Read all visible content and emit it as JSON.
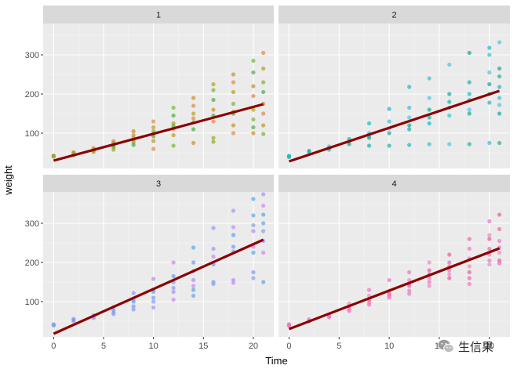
{
  "chart_data": {
    "type": "scatter",
    "xlabel": "Time",
    "ylabel": "weight",
    "xlim": [
      -1.05,
      22.05
    ],
    "ylim": [
      10,
      380
    ],
    "x_ticks": [
      0,
      5,
      10,
      15,
      20
    ],
    "y_ticks": [
      100,
      200,
      300
    ],
    "grid": true,
    "legend": "none",
    "facets": [
      {
        "label": "1",
        "colors": [
          "#C6912B",
          "#E08A4A",
          "#B8A020",
          "#7FB33A",
          "#4CB04A"
        ],
        "fit_line": {
          "x": [
            0,
            21
          ],
          "y": [
            30,
            174
          ],
          "color": "#8B0000"
        },
        "points": [
          {
            "x": 0,
            "y": 42
          },
          {
            "x": 0,
            "y": 40
          },
          {
            "x": 0,
            "y": 43
          },
          {
            "x": 0,
            "y": 41
          },
          {
            "x": 2,
            "y": 50
          },
          {
            "x": 2,
            "y": 48
          },
          {
            "x": 2,
            "y": 46
          },
          {
            "x": 2,
            "y": 51
          },
          {
            "x": 2,
            "y": 44
          },
          {
            "x": 4,
            "y": 59
          },
          {
            "x": 4,
            "y": 56
          },
          {
            "x": 4,
            "y": 62
          },
          {
            "x": 4,
            "y": 52
          },
          {
            "x": 4,
            "y": 55
          },
          {
            "x": 6,
            "y": 76
          },
          {
            "x": 6,
            "y": 70
          },
          {
            "x": 6,
            "y": 80
          },
          {
            "x": 6,
            "y": 64
          },
          {
            "x": 6,
            "y": 58
          },
          {
            "x": 6,
            "y": 68
          },
          {
            "x": 8,
            "y": 105
          },
          {
            "x": 8,
            "y": 95
          },
          {
            "x": 8,
            "y": 88
          },
          {
            "x": 8,
            "y": 76
          },
          {
            "x": 8,
            "y": 70
          },
          {
            "x": 8,
            "y": 82
          },
          {
            "x": 10,
            "y": 130
          },
          {
            "x": 10,
            "y": 115
          },
          {
            "x": 10,
            "y": 105
          },
          {
            "x": 10,
            "y": 92
          },
          {
            "x": 10,
            "y": 80
          },
          {
            "x": 10,
            "y": 60
          },
          {
            "x": 10,
            "y": 98
          },
          {
            "x": 12,
            "y": 165
          },
          {
            "x": 12,
            "y": 145
          },
          {
            "x": 12,
            "y": 125
          },
          {
            "x": 12,
            "y": 110
          },
          {
            "x": 12,
            "y": 95
          },
          {
            "x": 12,
            "y": 68
          },
          {
            "x": 12,
            "y": 118
          },
          {
            "x": 14,
            "y": 190
          },
          {
            "x": 14,
            "y": 170
          },
          {
            "x": 14,
            "y": 150
          },
          {
            "x": 14,
            "y": 128
          },
          {
            "x": 14,
            "y": 110
          },
          {
            "x": 14,
            "y": 75
          },
          {
            "x": 14,
            "y": 138
          },
          {
            "x": 16,
            "y": 225
          },
          {
            "x": 16,
            "y": 210
          },
          {
            "x": 16,
            "y": 185
          },
          {
            "x": 16,
            "y": 160
          },
          {
            "x": 16,
            "y": 130
          },
          {
            "x": 16,
            "y": 88
          },
          {
            "x": 16,
            "y": 78
          },
          {
            "x": 16,
            "y": 145
          },
          {
            "x": 18,
            "y": 250
          },
          {
            "x": 18,
            "y": 230
          },
          {
            "x": 18,
            "y": 205
          },
          {
            "x": 18,
            "y": 175
          },
          {
            "x": 18,
            "y": 150
          },
          {
            "x": 18,
            "y": 120
          },
          {
            "x": 18,
            "y": 100
          },
          {
            "x": 18,
            "y": 155
          },
          {
            "x": 20,
            "y": 285
          },
          {
            "x": 20,
            "y": 255
          },
          {
            "x": 20,
            "y": 220
          },
          {
            "x": 20,
            "y": 195
          },
          {
            "x": 20,
            "y": 160
          },
          {
            "x": 20,
            "y": 135
          },
          {
            "x": 20,
            "y": 115
          },
          {
            "x": 20,
            "y": 100
          },
          {
            "x": 21,
            "y": 305
          },
          {
            "x": 21,
            "y": 265
          },
          {
            "x": 21,
            "y": 230
          },
          {
            "x": 21,
            "y": 205
          },
          {
            "x": 21,
            "y": 175
          },
          {
            "x": 21,
            "y": 150
          },
          {
            "x": 21,
            "y": 120
          },
          {
            "x": 21,
            "y": 98
          }
        ]
      },
      {
        "label": "2",
        "colors": [
          "#1FA79A",
          "#21B3A5",
          "#22B8C4",
          "#3AC0D8",
          "#52C5E3"
        ],
        "fit_line": {
          "x": [
            0,
            21
          ],
          "y": [
            28,
            208
          ],
          "color": "#8B0000"
        },
        "points": [
          {
            "x": 0,
            "y": 42
          },
          {
            "x": 0,
            "y": 39
          },
          {
            "x": 0,
            "y": 41
          },
          {
            "x": 2,
            "y": 52
          },
          {
            "x": 2,
            "y": 49
          },
          {
            "x": 2,
            "y": 55
          },
          {
            "x": 4,
            "y": 62
          },
          {
            "x": 4,
            "y": 58
          },
          {
            "x": 4,
            "y": 66
          },
          {
            "x": 6,
            "y": 78
          },
          {
            "x": 6,
            "y": 72
          },
          {
            "x": 6,
            "y": 85
          },
          {
            "x": 8,
            "y": 125
          },
          {
            "x": 8,
            "y": 100
          },
          {
            "x": 8,
            "y": 92
          },
          {
            "x": 8,
            "y": 88
          },
          {
            "x": 8,
            "y": 68
          },
          {
            "x": 10,
            "y": 162
          },
          {
            "x": 10,
            "y": 130
          },
          {
            "x": 10,
            "y": 112
          },
          {
            "x": 10,
            "y": 100
          },
          {
            "x": 10,
            "y": 68
          },
          {
            "x": 12,
            "y": 218
          },
          {
            "x": 12,
            "y": 165
          },
          {
            "x": 12,
            "y": 140
          },
          {
            "x": 12,
            "y": 120
          },
          {
            "x": 12,
            "y": 110
          },
          {
            "x": 12,
            "y": 70
          },
          {
            "x": 14,
            "y": 240
          },
          {
            "x": 14,
            "y": 190
          },
          {
            "x": 14,
            "y": 160
          },
          {
            "x": 14,
            "y": 140
          },
          {
            "x": 14,
            "y": 125
          },
          {
            "x": 14,
            "y": 72
          },
          {
            "x": 16,
            "y": 275
          },
          {
            "x": 16,
            "y": 200
          },
          {
            "x": 16,
            "y": 180
          },
          {
            "x": 16,
            "y": 165
          },
          {
            "x": 16,
            "y": 145
          },
          {
            "x": 16,
            "y": 72
          },
          {
            "x": 18,
            "y": 305
          },
          {
            "x": 18,
            "y": 230
          },
          {
            "x": 18,
            "y": 200
          },
          {
            "x": 18,
            "y": 185
          },
          {
            "x": 18,
            "y": 160
          },
          {
            "x": 18,
            "y": 150
          },
          {
            "x": 18,
            "y": 72
          },
          {
            "x": 20,
            "y": 318
          },
          {
            "x": 20,
            "y": 300
          },
          {
            "x": 20,
            "y": 255
          },
          {
            "x": 20,
            "y": 225
          },
          {
            "x": 20,
            "y": 200
          },
          {
            "x": 20,
            "y": 178
          },
          {
            "x": 20,
            "y": 75
          },
          {
            "x": 21,
            "y": 332
          },
          {
            "x": 21,
            "y": 265
          },
          {
            "x": 21,
            "y": 245
          },
          {
            "x": 21,
            "y": 218
          },
          {
            "x": 21,
            "y": 190
          },
          {
            "x": 21,
            "y": 172
          },
          {
            "x": 21,
            "y": 150
          },
          {
            "x": 21,
            "y": 75
          }
        ]
      },
      {
        "label": "3",
        "colors": [
          "#5AA7E6",
          "#6FA0F0",
          "#8E9CF2",
          "#B08EF5",
          "#C78AF2"
        ],
        "fit_line": {
          "x": [
            0,
            21
          ],
          "y": [
            18,
            258
          ],
          "color": "#8B0000"
        },
        "points": [
          {
            "x": 0,
            "y": 42
          },
          {
            "x": 0,
            "y": 39
          },
          {
            "x": 0,
            "y": 41
          },
          {
            "x": 2,
            "y": 56
          },
          {
            "x": 2,
            "y": 50
          },
          {
            "x": 2,
            "y": 53
          },
          {
            "x": 4,
            "y": 65
          },
          {
            "x": 4,
            "y": 58
          },
          {
            "x": 4,
            "y": 62
          },
          {
            "x": 6,
            "y": 86
          },
          {
            "x": 6,
            "y": 78
          },
          {
            "x": 6,
            "y": 72
          },
          {
            "x": 6,
            "y": 68
          },
          {
            "x": 8,
            "y": 122
          },
          {
            "x": 8,
            "y": 105
          },
          {
            "x": 8,
            "y": 100
          },
          {
            "x": 8,
            "y": 88
          },
          {
            "x": 8,
            "y": 80
          },
          {
            "x": 10,
            "y": 158
          },
          {
            "x": 10,
            "y": 130
          },
          {
            "x": 10,
            "y": 125
          },
          {
            "x": 10,
            "y": 110
          },
          {
            "x": 10,
            "y": 100
          },
          {
            "x": 10,
            "y": 85
          },
          {
            "x": 12,
            "y": 200
          },
          {
            "x": 12,
            "y": 165
          },
          {
            "x": 12,
            "y": 150
          },
          {
            "x": 12,
            "y": 135
          },
          {
            "x": 12,
            "y": 125
          },
          {
            "x": 12,
            "y": 105
          },
          {
            "x": 14,
            "y": 238
          },
          {
            "x": 14,
            "y": 200
          },
          {
            "x": 14,
            "y": 178
          },
          {
            "x": 14,
            "y": 155
          },
          {
            "x": 14,
            "y": 140
          },
          {
            "x": 14,
            "y": 130
          },
          {
            "x": 14,
            "y": 115
          },
          {
            "x": 16,
            "y": 288
          },
          {
            "x": 16,
            "y": 235
          },
          {
            "x": 16,
            "y": 215
          },
          {
            "x": 16,
            "y": 195
          },
          {
            "x": 16,
            "y": 150
          },
          {
            "x": 16,
            "y": 145
          },
          {
            "x": 18,
            "y": 332
          },
          {
            "x": 18,
            "y": 290
          },
          {
            "x": 18,
            "y": 270
          },
          {
            "x": 18,
            "y": 240
          },
          {
            "x": 18,
            "y": 228
          },
          {
            "x": 18,
            "y": 155
          },
          {
            "x": 18,
            "y": 148
          },
          {
            "x": 20,
            "y": 362
          },
          {
            "x": 20,
            "y": 320
          },
          {
            "x": 20,
            "y": 295
          },
          {
            "x": 20,
            "y": 280
          },
          {
            "x": 20,
            "y": 240
          },
          {
            "x": 20,
            "y": 225
          },
          {
            "x": 20,
            "y": 175
          },
          {
            "x": 20,
            "y": 160
          },
          {
            "x": 21,
            "y": 374
          },
          {
            "x": 21,
            "y": 345
          },
          {
            "x": 21,
            "y": 322
          },
          {
            "x": 21,
            "y": 300
          },
          {
            "x": 21,
            "y": 280
          },
          {
            "x": 21,
            "y": 255
          },
          {
            "x": 21,
            "y": 225
          },
          {
            "x": 21,
            "y": 150
          }
        ]
      },
      {
        "label": "4",
        "colors": [
          "#E85FA0",
          "#EE6BB3",
          "#F278C0",
          "#E879C9",
          "#F08BBE"
        ],
        "fit_line": {
          "x": [
            0,
            21
          ],
          "y": [
            30,
            236
          ],
          "color": "#8B0000"
        },
        "points": [
          {
            "x": 0,
            "y": 42
          },
          {
            "x": 0,
            "y": 38
          },
          {
            "x": 0,
            "y": 40
          },
          {
            "x": 2,
            "y": 52
          },
          {
            "x": 2,
            "y": 55
          },
          {
            "x": 2,
            "y": 50
          },
          {
            "x": 4,
            "y": 68
          },
          {
            "x": 4,
            "y": 62
          },
          {
            "x": 4,
            "y": 60
          },
          {
            "x": 6,
            "y": 95
          },
          {
            "x": 6,
            "y": 88
          },
          {
            "x": 6,
            "y": 80
          },
          {
            "x": 6,
            "y": 76
          },
          {
            "x": 8,
            "y": 130
          },
          {
            "x": 8,
            "y": 115
          },
          {
            "x": 8,
            "y": 105
          },
          {
            "x": 8,
            "y": 98
          },
          {
            "x": 8,
            "y": 92
          },
          {
            "x": 10,
            "y": 155
          },
          {
            "x": 10,
            "y": 128
          },
          {
            "x": 10,
            "y": 120
          },
          {
            "x": 10,
            "y": 115
          },
          {
            "x": 10,
            "y": 110
          },
          {
            "x": 12,
            "y": 175
          },
          {
            "x": 12,
            "y": 155
          },
          {
            "x": 12,
            "y": 145
          },
          {
            "x": 12,
            "y": 140
          },
          {
            "x": 12,
            "y": 128
          },
          {
            "x": 12,
            "y": 120
          },
          {
            "x": 14,
            "y": 200
          },
          {
            "x": 14,
            "y": 180
          },
          {
            "x": 14,
            "y": 170
          },
          {
            "x": 14,
            "y": 160
          },
          {
            "x": 14,
            "y": 150
          },
          {
            "x": 14,
            "y": 140
          },
          {
            "x": 16,
            "y": 220
          },
          {
            "x": 16,
            "y": 200
          },
          {
            "x": 16,
            "y": 190
          },
          {
            "x": 16,
            "y": 180
          },
          {
            "x": 16,
            "y": 170
          },
          {
            "x": 16,
            "y": 160
          },
          {
            "x": 18,
            "y": 260
          },
          {
            "x": 18,
            "y": 235
          },
          {
            "x": 18,
            "y": 210
          },
          {
            "x": 18,
            "y": 190
          },
          {
            "x": 18,
            "y": 175
          },
          {
            "x": 18,
            "y": 160
          },
          {
            "x": 18,
            "y": 145
          },
          {
            "x": 20,
            "y": 305
          },
          {
            "x": 20,
            "y": 270
          },
          {
            "x": 20,
            "y": 260
          },
          {
            "x": 20,
            "y": 235
          },
          {
            "x": 20,
            "y": 220
          },
          {
            "x": 20,
            "y": 205
          },
          {
            "x": 20,
            "y": 195
          },
          {
            "x": 21,
            "y": 322
          },
          {
            "x": 21,
            "y": 285
          },
          {
            "x": 21,
            "y": 255
          },
          {
            "x": 21,
            "y": 238
          },
          {
            "x": 21,
            "y": 225
          },
          {
            "x": 21,
            "y": 205
          },
          {
            "x": 21,
            "y": 198
          }
        ]
      }
    ]
  },
  "watermark": {
    "text": "生信果",
    "icon": "wechat-icon"
  }
}
